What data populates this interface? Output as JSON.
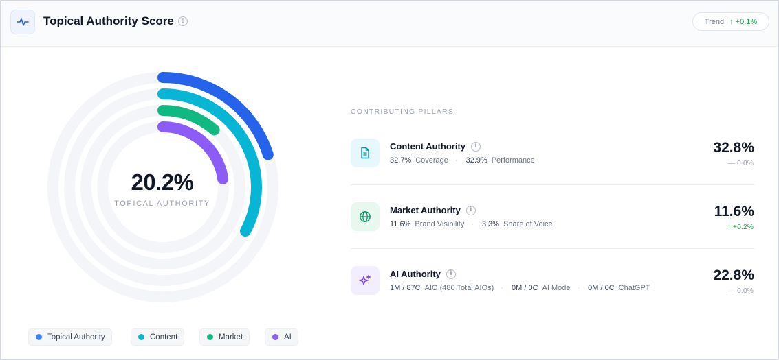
{
  "header": {
    "title": "Topical Authority Score",
    "trend_label": "Trend",
    "trend_value": "↑ +0.1%"
  },
  "gauge": {
    "value": "20.2%",
    "label": "TOPICAL AUTHORITY",
    "rings": [
      {
        "name": "Topical Authority",
        "value": 20.2,
        "color": "#2563eb"
      },
      {
        "name": "Content",
        "value": 32.8,
        "color": "#06b6d4"
      },
      {
        "name": "Market",
        "value": 11.6,
        "color": "#10b981"
      },
      {
        "name": "AI",
        "value": 22.8,
        "color": "#8b5cf6"
      }
    ]
  },
  "legend": [
    {
      "label": "Topical Authority",
      "color": "#3b82f6"
    },
    {
      "label": "Content",
      "color": "#06b6d4"
    },
    {
      "label": "Market",
      "color": "#10b981"
    },
    {
      "label": "AI",
      "color": "#8b5cf6"
    }
  ],
  "pillars": {
    "heading": "CONTRIBUTING PILLARS",
    "items": [
      {
        "name": "Content Authority",
        "icon": "document-icon",
        "value": "32.8%",
        "change": "— 0.0%",
        "stats": [
          {
            "num": "32.7%",
            "label": "Coverage"
          },
          {
            "num": "32.9%",
            "label": "Performance"
          }
        ]
      },
      {
        "name": "Market Authority",
        "icon": "globe-icon",
        "value": "11.6%",
        "change": "↑ +0.2%",
        "stats": [
          {
            "num": "11.6%",
            "label": "Brand Visibility"
          },
          {
            "num": "3.3%",
            "label": "Share of Voice"
          }
        ]
      },
      {
        "name": "AI Authority",
        "icon": "sparkles-icon",
        "value": "22.8%",
        "change": "— 0.0%",
        "stats": [
          {
            "num": "1M / 87C",
            "label": "AIO (480 Total AIOs)"
          },
          {
            "num": "0M / 0C",
            "label": "AI Mode"
          },
          {
            "num": "0M / 0C",
            "label": "ChatGPT"
          }
        ]
      }
    ]
  }
}
